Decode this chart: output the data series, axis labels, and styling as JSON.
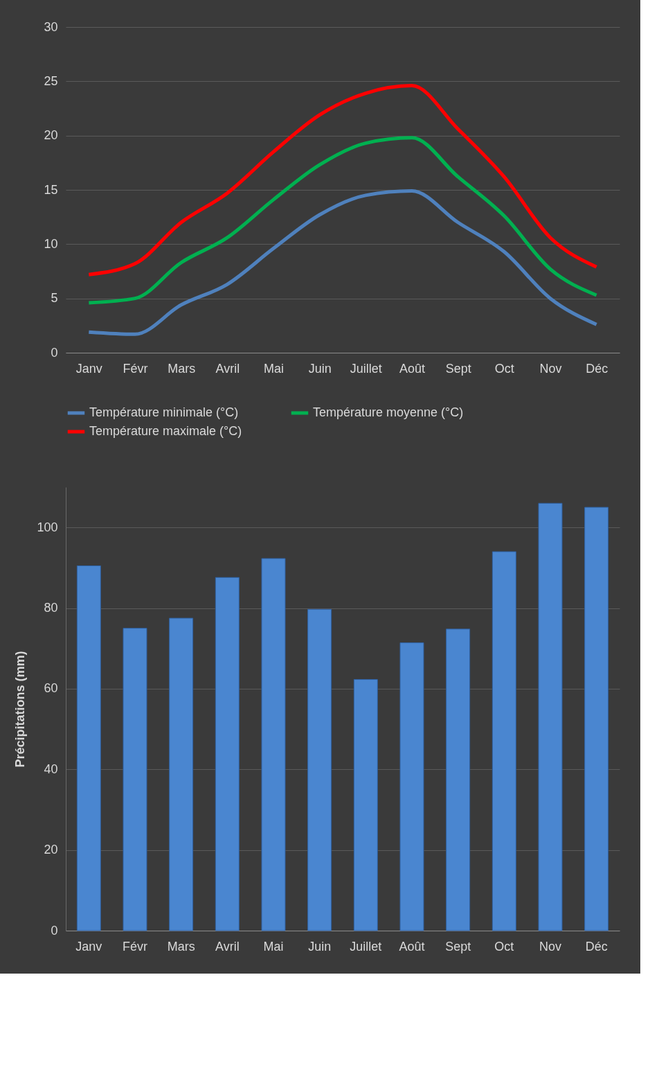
{
  "chart_data": [
    {
      "type": "line",
      "categories": [
        "Janv",
        "Févr",
        "Mars",
        "Avril",
        "Mai",
        "Juin",
        "Juillet",
        "Août",
        "Sept",
        "Oct",
        "Nov",
        "Déc"
      ],
      "ylim": [
        0,
        30
      ],
      "yticks": [
        0,
        5,
        10,
        15,
        20,
        25,
        30
      ],
      "grid": "y",
      "legend": "bottom",
      "marker": "none",
      "line_style": "solid",
      "series": [
        {
          "name": "Température minimale (°C)",
          "color": "#4f81bd",
          "values": [
            1.9,
            1.7,
            4.4,
            6.3,
            9.6,
            12.7,
            14.5,
            14.9,
            12.0,
            9.3,
            5.0,
            2.6
          ]
        },
        {
          "name": "Température moyenne (°C)",
          "color": "#00b050",
          "values": [
            4.6,
            5.0,
            8.3,
            10.6,
            14.1,
            17.3,
            19.3,
            19.8,
            16.2,
            12.6,
            7.7,
            5.3
          ]
        },
        {
          "name": "Température maximale (°C)",
          "color": "#ff0000",
          "values": [
            7.2,
            8.2,
            12.0,
            14.7,
            18.5,
            21.9,
            23.9,
            24.6,
            20.6,
            16.2,
            10.6,
            7.9
          ]
        }
      ]
    },
    {
      "type": "bar",
      "ylabel": "Précipitations (mm)",
      "categories": [
        "Janv",
        "Févr",
        "Mars",
        "Avril",
        "Mai",
        "Juin",
        "Juillet",
        "Août",
        "Sept",
        "Oct",
        "Nov",
        "Déc"
      ],
      "ylim": [
        0,
        110
      ],
      "yticks": [
        0,
        20,
        40,
        60,
        80,
        100
      ],
      "grid": "y",
      "legend": false,
      "series": [
        {
          "color": "#4a86d0",
          "values": [
            90.5,
            75.0,
            77.5,
            87.6,
            92.3,
            79.7,
            62.3,
            71.4,
            74.8,
            94.0,
            106.0,
            105.0
          ]
        }
      ]
    }
  ]
}
